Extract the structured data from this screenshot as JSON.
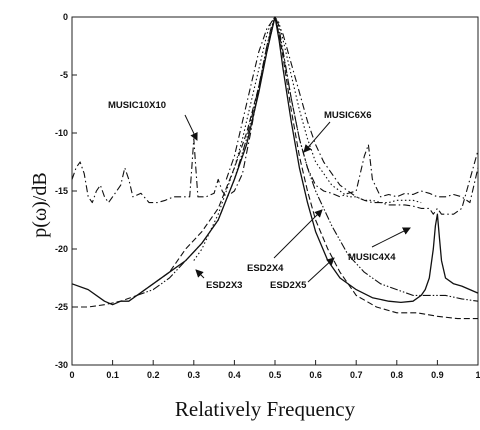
{
  "chart_data": {
    "type": "line",
    "xlabel": "Relatively Frequency",
    "ylabel": "p(ω)/dB",
    "xlim": [
      0,
      1
    ],
    "ylim": [
      -30,
      0
    ],
    "xticks": [
      {
        "v": 0,
        "label": "0"
      },
      {
        "v": 0.1,
        "label": "0.1"
      },
      {
        "v": 0.2,
        "label": "0.2"
      },
      {
        "v": 0.3,
        "label": "0.3"
      },
      {
        "v": 0.4,
        "label": "0.4"
      },
      {
        "v": 0.5,
        "label": "0.5"
      },
      {
        "v": 0.6,
        "label": "0.6"
      },
      {
        "v": 0.7,
        "label": "0.7"
      },
      {
        "v": 0.8,
        "label": "0.8"
      },
      {
        "v": 0.9,
        "label": "0.9"
      },
      {
        "v": 1.0,
        "label": "1"
      }
    ],
    "yticks": [
      {
        "v": 0,
        "label": "0"
      },
      {
        "v": -5,
        "label": "-5"
      },
      {
        "v": -10,
        "label": "-10"
      },
      {
        "v": -15,
        "label": "-15"
      },
      {
        "v": -20,
        "label": "-20"
      },
      {
        "v": -25,
        "label": "-25"
      },
      {
        "v": -30,
        "label": "-30"
      }
    ],
    "series": [
      {
        "name": "MUSIC10X10",
        "style": "dashdot",
        "color": "#111111",
        "x": [
          0,
          0.01,
          0.02,
          0.03,
          0.04,
          0.05,
          0.06,
          0.07,
          0.08,
          0.09,
          0.1,
          0.11,
          0.12,
          0.13,
          0.14,
          0.15,
          0.17,
          0.19,
          0.21,
          0.23,
          0.25,
          0.27,
          0.29,
          0.295,
          0.3,
          0.305,
          0.31,
          0.33,
          0.35,
          0.36,
          0.37,
          0.38,
          0.4,
          0.42,
          0.44,
          0.46,
          0.48,
          0.5,
          0.52,
          0.54,
          0.56,
          0.58,
          0.6,
          0.62,
          0.64,
          0.66,
          0.68,
          0.7,
          0.72,
          0.73,
          0.74,
          0.76,
          0.78,
          0.8,
          0.82,
          0.84,
          0.86,
          0.88,
          0.9,
          0.92,
          0.94,
          0.96,
          0.98,
          1.0
        ],
        "y": [
          -14,
          -13,
          -12.5,
          -13.5,
          -15.5,
          -16,
          -15,
          -14.5,
          -15.5,
          -16,
          -15.5,
          -15,
          -14.5,
          -13,
          -14,
          -15.5,
          -15.2,
          -16,
          -16,
          -15.8,
          -15.5,
          -15.5,
          -15.5,
          -13,
          -10.5,
          -13,
          -15.5,
          -15.5,
          -15.2,
          -14,
          -15,
          -15.5,
          -15,
          -13.5,
          -10,
          -6,
          -2.5,
          0,
          -3,
          -7,
          -10.5,
          -13,
          -14.5,
          -15,
          -15.2,
          -15.5,
          -15.2,
          -15,
          -12,
          -11,
          -14,
          -15.5,
          -15.3,
          -15.5,
          -15.2,
          -15.3,
          -15,
          -15.2,
          -15.5,
          -15.5,
          -15.3,
          -15.5,
          -16,
          -13
        ]
      },
      {
        "name": "MUSIC6X6",
        "style": "dotted",
        "color": "#111111",
        "x": [
          0.3,
          0.32,
          0.34,
          0.36,
          0.38,
          0.4,
          0.42,
          0.44,
          0.46,
          0.48,
          0.49,
          0.5,
          0.51,
          0.52,
          0.54,
          0.56,
          0.58,
          0.6,
          0.62,
          0.64,
          0.66,
          0.68,
          0.7,
          0.72,
          0.74,
          0.76,
          0.78,
          0.8,
          0.82,
          0.84,
          0.86
        ],
        "y": [
          -21,
          -20,
          -18.5,
          -17,
          -15,
          -13,
          -10.5,
          -7.5,
          -4.5,
          -1.5,
          -0.5,
          0,
          -0.5,
          -2,
          -5,
          -8,
          -10.5,
          -12.5,
          -13.5,
          -14.5,
          -15,
          -15.5,
          -15.5,
          -15.8,
          -15.8,
          -16,
          -16,
          -15.8,
          -15.8,
          -15.8,
          -16
        ]
      },
      {
        "name": "MUSIC4X4",
        "style": "dashdot",
        "color": "#111111",
        "x": [
          0.38,
          0.4,
          0.42,
          0.44,
          0.46,
          0.48,
          0.5,
          0.52,
          0.54,
          0.56,
          0.58,
          0.6,
          0.62,
          0.64,
          0.66,
          0.68,
          0.7,
          0.72,
          0.74,
          0.76,
          0.78,
          0.8,
          0.82,
          0.84,
          0.86,
          0.88,
          0.89,
          0.9,
          0.91,
          0.92,
          0.94,
          0.96,
          0.98,
          1.0
        ],
        "y": [
          -14,
          -12,
          -9,
          -6,
          -3,
          -1,
          0,
          -1.5,
          -4,
          -6.5,
          -9,
          -11,
          -12.5,
          -13.5,
          -14.5,
          -15,
          -15.5,
          -15.8,
          -16,
          -16,
          -16.2,
          -16.2,
          -16.2,
          -16.3,
          -16.5,
          -16.5,
          -17,
          -16.5,
          -17,
          -17,
          -17,
          -16.5,
          -14,
          -11.5
        ]
      },
      {
        "name": "ESD2X4",
        "style": "dashdotdot",
        "color": "#111111",
        "x": [
          0.16,
          0.2,
          0.24,
          0.28,
          0.32,
          0.36,
          0.4,
          0.43,
          0.46,
          0.48,
          0.49,
          0.5,
          0.51,
          0.52,
          0.54,
          0.56,
          0.58,
          0.6,
          0.64,
          0.68,
          0.72,
          0.76,
          0.8,
          0.84,
          0.88,
          0.92,
          0.96,
          1.0
        ],
        "y": [
          -24,
          -23.5,
          -22.5,
          -21,
          -19.5,
          -17.5,
          -14,
          -10.5,
          -6,
          -2.5,
          -1,
          0,
          -1,
          -3,
          -7,
          -10.5,
          -13,
          -15,
          -18,
          -20.5,
          -22,
          -23,
          -23.5,
          -24,
          -24,
          -24,
          -24.3,
          -24.5
        ]
      },
      {
        "name": "ESD2X3",
        "style": "dashed",
        "color": "#111111",
        "x": [
          0,
          0.04,
          0.08,
          0.12,
          0.16,
          0.2,
          0.24,
          0.28,
          0.32,
          0.36,
          0.4,
          0.43,
          0.46,
          0.48,
          0.49,
          0.5,
          0.51,
          0.52,
          0.54,
          0.56,
          0.58,
          0.6,
          0.63,
          0.66,
          0.7,
          0.75,
          0.8,
          0.85,
          0.9,
          0.95,
          1.0
        ],
        "y": [
          -25,
          -25,
          -24.8,
          -24.5,
          -24,
          -23,
          -22,
          -20,
          -18.5,
          -16.5,
          -13,
          -10,
          -6,
          -3,
          -1.5,
          0,
          -1.5,
          -3.5,
          -8,
          -12,
          -15,
          -17.5,
          -20,
          -22,
          -24,
          -25,
          -25.5,
          -25.5,
          -25.8,
          -26,
          -26
        ]
      },
      {
        "name": "ESD2X5",
        "style": "solid",
        "color": "#111111",
        "x": [
          0,
          0.04,
          0.08,
          0.1,
          0.12,
          0.14,
          0.16,
          0.2,
          0.24,
          0.28,
          0.32,
          0.36,
          0.4,
          0.43,
          0.46,
          0.48,
          0.49,
          0.5,
          0.51,
          0.52,
          0.54,
          0.56,
          0.58,
          0.6,
          0.63,
          0.66,
          0.7,
          0.74,
          0.78,
          0.81,
          0.84,
          0.86,
          0.87,
          0.88,
          0.89,
          0.895,
          0.9,
          0.905,
          0.91,
          0.92,
          0.94,
          0.96,
          0.98,
          1.0
        ],
        "y": [
          -23,
          -23.5,
          -24.5,
          -24.8,
          -24.5,
          -24.5,
          -24,
          -23,
          -22,
          -21,
          -19.5,
          -17.5,
          -14,
          -11,
          -6.5,
          -3,
          -1.5,
          0,
          -2,
          -4.5,
          -9,
          -13,
          -16,
          -18.5,
          -21,
          -22.5,
          -23.5,
          -24.2,
          -24.5,
          -24.6,
          -24.5,
          -24,
          -23.5,
          -22.5,
          -20,
          -18,
          -17,
          -19,
          -21,
          -22.5,
          -23,
          -23.2,
          -23.5,
          -23.8
        ]
      }
    ],
    "annotations": [
      {
        "label": "MUSIC10X10",
        "series": "MUSIC10X10"
      },
      {
        "label": "MUSIC6X6",
        "series": "MUSIC6X6"
      },
      {
        "label": "MUSIC4X4",
        "series": "MUSIC4X4"
      },
      {
        "label": "ESD2X4",
        "series": "ESD2X4"
      },
      {
        "label": "ESD2X3",
        "series": "ESD2X3"
      },
      {
        "label": "ESD2X5",
        "series": "ESD2X5"
      }
    ]
  }
}
